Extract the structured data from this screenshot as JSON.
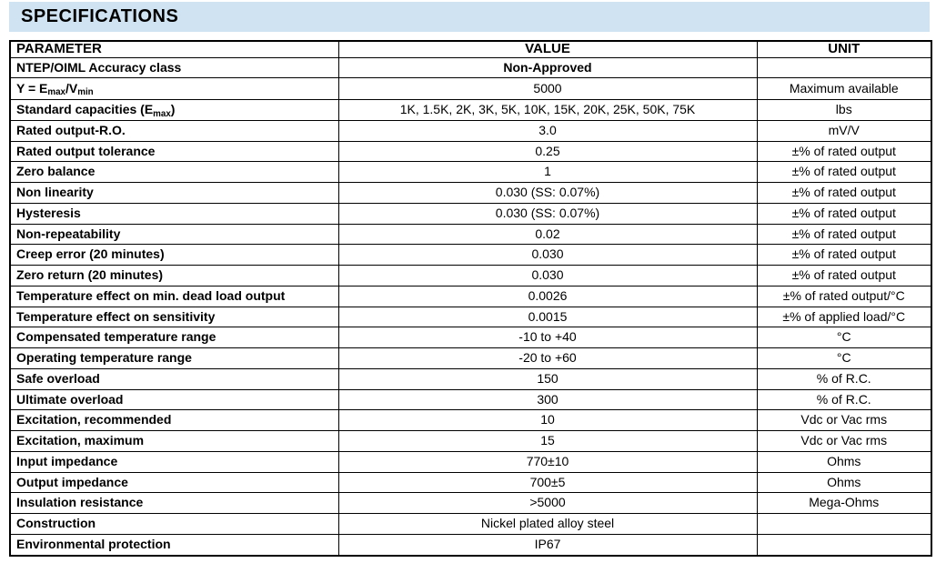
{
  "page": {
    "title": "SPECIFICATIONS",
    "banner_bg": "#cfe3f2"
  },
  "table": {
    "headers": [
      "PARAMETER",
      "VALUE",
      "UNIT"
    ],
    "rows": [
      {
        "parameter": "NTEP/OIML Accuracy class",
        "value": "Non-Approved",
        "unit": "",
        "value_bold": true
      },
      {
        "parameter": "Y = E_{max}/V_{min}",
        "value": "5000",
        "unit": "Maximum available"
      },
      {
        "parameter": "Standard capacities (E_{max})",
        "value": "1K, 1.5K, 2K, 3K, 5K, 10K, 15K, 20K, 25K, 50K, 75K",
        "unit": "lbs"
      },
      {
        "parameter": "Rated output-R.O.",
        "value": "3.0",
        "unit": "mV/V"
      },
      {
        "parameter": "Rated output tolerance",
        "value": "0.25",
        "unit": "±% of rated output"
      },
      {
        "parameter": "Zero balance",
        "value": "1",
        "unit": "±% of rated output"
      },
      {
        "parameter": "Non linearity",
        "value": "0.030 (SS: 0.07%)",
        "unit": "±% of rated output"
      },
      {
        "parameter": "Hysteresis",
        "value": "0.030 (SS: 0.07%)",
        "unit": "±% of rated output"
      },
      {
        "parameter": "Non-repeatability",
        "value": "0.02",
        "unit": "±% of rated output"
      },
      {
        "parameter": "Creep error (20 minutes)",
        "value": "0.030",
        "unit": "±% of rated output"
      },
      {
        "parameter": "Zero return (20 minutes)",
        "value": "0.030",
        "unit": "±% of rated output"
      },
      {
        "parameter": "Temperature effect on min. dead load output",
        "value": "0.0026",
        "unit": "±% of rated output/°C"
      },
      {
        "parameter": "Temperature effect on sensitivity",
        "value": "0.0015",
        "unit": "±% of applied load/°C"
      },
      {
        "parameter": "Compensated temperature range",
        "value": "-10 to +40",
        "unit": "°C"
      },
      {
        "parameter": "Operating temperature range",
        "value": "-20 to +60",
        "unit": "°C"
      },
      {
        "parameter": "Safe overload",
        "value": "150",
        "unit": "% of R.C."
      },
      {
        "parameter": "Ultimate overload",
        "value": "300",
        "unit": "% of R.C."
      },
      {
        "parameter": "Excitation, recommended",
        "value": "10",
        "unit": "Vdc or Vac rms"
      },
      {
        "parameter": "Excitation, maximum",
        "value": "15",
        "unit": "Vdc or Vac rms"
      },
      {
        "parameter": "Input impedance",
        "value": "770±10",
        "unit": "Ohms"
      },
      {
        "parameter": "Output impedance",
        "value": "700±5",
        "unit": "Ohms"
      },
      {
        "parameter": "Insulation resistance",
        "value": ">5000",
        "unit": "Mega-Ohms"
      },
      {
        "parameter": "Construction",
        "value": "Nickel plated alloy steel",
        "unit": ""
      },
      {
        "parameter": "Environmental protection",
        "value": "IP67",
        "unit": ""
      }
    ]
  }
}
